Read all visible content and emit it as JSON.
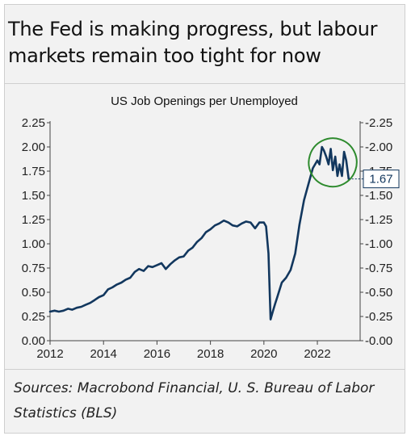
{
  "headline": "The Fed is making progress, but labour markets remain too tight for now",
  "source_note": "Sources: Macrobond Financial, U. S. Bureau of Labor Statistics (BLS)",
  "chart_data": {
    "type": "line",
    "title": "US Job Openings per Unemployed",
    "xlabel": "",
    "ylabel": "",
    "xlim": [
      2012.0,
      2023.6
    ],
    "ylim": [
      0,
      2.25
    ],
    "x_ticks": [
      "2012",
      "2014",
      "2016",
      "2018",
      "2020",
      "2022"
    ],
    "y_ticks_left": [
      "2.25",
      "2.00",
      "1.75",
      "1.50",
      "1.25",
      "1.00",
      "0.75",
      "0.50",
      "0.25",
      "0.00"
    ],
    "y_ticks_right": [
      "2.25",
      "2.00",
      "1.75",
      "1.50",
      "1.25",
      "1.00",
      "0.75",
      "0.50",
      "0.25",
      "0.00"
    ],
    "grid": false,
    "last_value_label": "1.67",
    "highlight": "green ellipse around the 2022–2023 peak",
    "colors": {
      "line": "#12375e",
      "highlight": "#2e8b2e",
      "label_border": "#12375e"
    },
    "series": [
      {
        "x": [
          2012.0,
          2012.17,
          2012.33,
          2012.5,
          2012.67,
          2012.83,
          2013.0,
          2013.17,
          2013.33,
          2013.5,
          2013.67,
          2013.83,
          2014.0,
          2014.17,
          2014.33,
          2014.5,
          2014.67,
          2014.83,
          2015.0,
          2015.17,
          2015.33,
          2015.5,
          2015.67,
          2015.83,
          2016.0,
          2016.17,
          2016.33,
          2016.5,
          2016.67,
          2016.83,
          2017.0,
          2017.17,
          2017.33,
          2017.5,
          2017.67,
          2017.83,
          2018.0,
          2018.17,
          2018.33,
          2018.5,
          2018.67,
          2018.83,
          2019.0,
          2019.17,
          2019.33,
          2019.5,
          2019.67,
          2019.83,
          2020.0,
          2020.08,
          2020.17,
          2020.25,
          2020.33,
          2020.42,
          2020.5,
          2020.67,
          2020.83,
          2021.0,
          2021.17,
          2021.33,
          2021.5,
          2021.67,
          2021.83,
          2022.0,
          2022.08,
          2022.17,
          2022.25,
          2022.33,
          2022.42,
          2022.5,
          2022.58,
          2022.67,
          2022.75,
          2022.83,
          2022.92,
          2023.0,
          2023.08,
          2023.17
        ],
        "y": [
          0.3,
          0.31,
          0.3,
          0.31,
          0.33,
          0.32,
          0.34,
          0.35,
          0.37,
          0.39,
          0.42,
          0.45,
          0.47,
          0.53,
          0.55,
          0.58,
          0.6,
          0.63,
          0.65,
          0.71,
          0.74,
          0.72,
          0.77,
          0.76,
          0.78,
          0.8,
          0.74,
          0.79,
          0.83,
          0.86,
          0.87,
          0.93,
          0.96,
          1.02,
          1.06,
          1.12,
          1.15,
          1.19,
          1.21,
          1.24,
          1.22,
          1.19,
          1.18,
          1.21,
          1.23,
          1.22,
          1.16,
          1.22,
          1.22,
          1.18,
          0.9,
          0.22,
          0.3,
          0.38,
          0.45,
          0.6,
          0.65,
          0.73,
          0.9,
          1.2,
          1.45,
          1.62,
          1.78,
          1.86,
          1.82,
          2.0,
          1.96,
          1.9,
          1.82,
          1.98,
          1.76,
          1.9,
          1.7,
          1.82,
          1.7,
          1.95,
          1.86,
          1.67
        ]
      }
    ]
  }
}
